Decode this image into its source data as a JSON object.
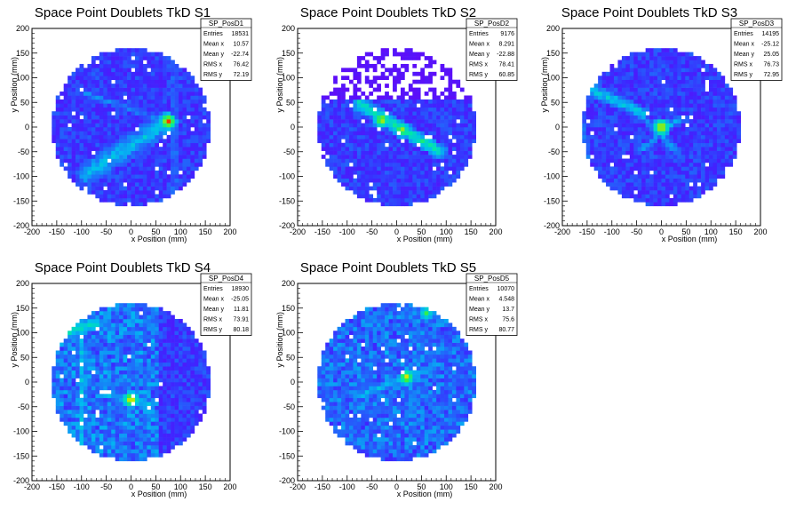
{
  "chart_data": [
    {
      "type": "heatmap",
      "title": "Space Point Doublets TkD S1",
      "xlabel": "x Position (mm)",
      "ylabel": "y Position (mm)",
      "xlim": [
        -200,
        200
      ],
      "ylim": [
        -200,
        200
      ],
      "xticks": [
        -200,
        -150,
        -100,
        -50,
        0,
        50,
        100,
        150,
        200
      ],
      "yticks": [
        -200,
        -150,
        -100,
        -50,
        0,
        50,
        100,
        150,
        200
      ],
      "stats": {
        "name": "SP_PosD1",
        "rows": [
          {
            "label": "Entries",
            "value": "18531"
          },
          {
            "label": "Mean x",
            "value": "10.57"
          },
          {
            "label": "Mean y",
            "value": "-22.74"
          },
          {
            "label": "RMS x",
            "value": "76.42"
          },
          {
            "label": "RMS y",
            "value": "72.19"
          }
        ]
      },
      "disk": {
        "center": [
          0,
          0
        ],
        "radius_mm": 160
      },
      "features": [
        {
          "kind": "band",
          "from": [
            -90,
            -95
          ],
          "to": [
            75,
            10
          ],
          "width_mm": 24,
          "level": 0.42
        },
        {
          "kind": "band",
          "from": [
            -95,
            70
          ],
          "to": [
            75,
            10
          ],
          "width_mm": 9,
          "level": 0.3
        },
        {
          "kind": "band",
          "from": [
            88,
            150
          ],
          "to": [
            88,
            -150
          ],
          "width_mm": 8,
          "level": 0.3
        },
        {
          "kind": "hotspot",
          "at": [
            75,
            12
          ],
          "level": 1.0
        }
      ]
    },
    {
      "type": "heatmap",
      "title": "Space Point Doublets TkD S2",
      "xlabel": "x Position (mm)",
      "ylabel": "y Position (mm)",
      "xlim": [
        -200,
        200
      ],
      "ylim": [
        -200,
        200
      ],
      "xticks": [
        -200,
        -150,
        -100,
        -50,
        0,
        50,
        100,
        150,
        200
      ],
      "yticks": [
        -200,
        -150,
        -100,
        -50,
        0,
        50,
        100,
        150,
        200
      ],
      "stats": {
        "name": "SP_PosD2",
        "rows": [
          {
            "label": "Entries",
            "value": "9176"
          },
          {
            "label": "Mean x",
            "value": "8.291"
          },
          {
            "label": "Mean y",
            "value": "-22.88"
          },
          {
            "label": "RMS x",
            "value": "78.41"
          },
          {
            "label": "RMS y",
            "value": "60.85"
          }
        ]
      },
      "disk": {
        "center": [
          0,
          0
        ],
        "radius_mm": 160
      },
      "features": [
        {
          "kind": "band",
          "from": [
            -75,
            48
          ],
          "to": [
            85,
            -48
          ],
          "width_mm": 16,
          "level": 0.55
        },
        {
          "kind": "hotspot",
          "at": [
            -30,
            15
          ],
          "level": 0.9
        },
        {
          "kind": "hotspot",
          "at": [
            10,
            -5
          ],
          "level": 0.85
        },
        {
          "kind": "sparse-region",
          "y_above_mm": 55,
          "level": 0.05
        }
      ]
    },
    {
      "type": "heatmap",
      "title": "Space Point Doublets TkD S3",
      "xlabel": "x Position (mm)",
      "ylabel": "y Position (mm)",
      "xlim": [
        -200,
        200
      ],
      "ylim": [
        -200,
        200
      ],
      "xticks": [
        -200,
        -150,
        -100,
        -50,
        0,
        50,
        100,
        150,
        200
      ],
      "yticks": [
        -200,
        -150,
        -100,
        -50,
        0,
        50,
        100,
        150,
        200
      ],
      "stats": {
        "name": "SP_PosD3",
        "rows": [
          {
            "label": "Entries",
            "value": "14195"
          },
          {
            "label": "Mean x",
            "value": "-25.12"
          },
          {
            "label": "Mean y",
            "value": "25.05"
          },
          {
            "label": "RMS x",
            "value": "76.73"
          },
          {
            "label": "RMS y",
            "value": "72.95"
          }
        ]
      },
      "disk": {
        "center": [
          0,
          0
        ],
        "radius_mm": 160
      },
      "features": [
        {
          "kind": "band",
          "from": [
            -150,
            80
          ],
          "to": [
            -40,
            30
          ],
          "width_mm": 14,
          "level": 0.45
        },
        {
          "kind": "band",
          "from": [
            -45,
            30
          ],
          "to": [
            40,
            -60
          ],
          "width_mm": 10,
          "level": 0.35
        },
        {
          "kind": "band",
          "from": [
            -40,
            -45
          ],
          "to": [
            40,
            20
          ],
          "width_mm": 7,
          "level": 0.4
        },
        {
          "kind": "band",
          "from": [
            -160,
            20
          ],
          "to": [
            -150,
            -70
          ],
          "width_mm": 10,
          "level": 0.3
        },
        {
          "kind": "hotspot",
          "at": [
            0,
            0
          ],
          "level": 0.95
        }
      ]
    },
    {
      "type": "heatmap",
      "title": "Space Point Doublets TkD S4",
      "xlabel": "x Position (mm)",
      "ylabel": "y Position (mm)",
      "xlim": [
        -200,
        200
      ],
      "ylim": [
        -200,
        200
      ],
      "xticks": [
        -200,
        -150,
        -100,
        -50,
        0,
        50,
        100,
        150,
        200
      ],
      "yticks": [
        -200,
        -150,
        -100,
        -50,
        0,
        50,
        100,
        150,
        200
      ],
      "stats": {
        "name": "SP_PosD4",
        "rows": [
          {
            "label": "Entries",
            "value": "18930"
          },
          {
            "label": "Mean x",
            "value": "-25.05"
          },
          {
            "label": "Mean y",
            "value": "11.81"
          },
          {
            "label": "RMS x",
            "value": "73.91"
          },
          {
            "label": "RMS y",
            "value": "80.18"
          }
        ]
      },
      "disk": {
        "center": [
          0,
          0
        ],
        "radius_mm": 160
      },
      "features": [
        {
          "kind": "region",
          "x_below_mm": 60,
          "level": 0.3
        },
        {
          "kind": "band",
          "from": [
            -100,
            150
          ],
          "to": [
            -100,
            -130
          ],
          "width_mm": 10,
          "level": 0.4
        },
        {
          "kind": "band",
          "from": [
            -130,
            100
          ],
          "to": [
            -70,
            120
          ],
          "width_mm": 14,
          "level": 0.55
        },
        {
          "kind": "band",
          "from": [
            -60,
            -25
          ],
          "to": [
            40,
            -45
          ],
          "width_mm": 8,
          "level": 0.4
        },
        {
          "kind": "hotspot",
          "at": [
            0,
            -35
          ],
          "level": 0.95
        }
      ]
    },
    {
      "type": "heatmap",
      "title": "Space Point Doublets TkD S5",
      "xlabel": "x Position (mm)",
      "ylabel": "y Position (mm)",
      "xlim": [
        -200,
        200
      ],
      "ylim": [
        -200,
        200
      ],
      "xticks": [
        -200,
        -150,
        -100,
        -50,
        0,
        50,
        100,
        150,
        200
      ],
      "yticks": [
        -200,
        -150,
        -100,
        -50,
        0,
        50,
        100,
        150,
        200
      ],
      "stats": {
        "name": "SP_PosD5",
        "rows": [
          {
            "label": "Entries",
            "value": "10070"
          },
          {
            "label": "Mean x",
            "value": "4.548"
          },
          {
            "label": "Mean y",
            "value": "13.7"
          },
          {
            "label": "RMS x",
            "value": "75.6"
          },
          {
            "label": "RMS y",
            "value": "80.77"
          }
        ]
      },
      "disk": {
        "center": [
          0,
          0
        ],
        "radius_mm": 160
      },
      "features": [
        {
          "kind": "region",
          "all": true,
          "level": 0.28
        },
        {
          "kind": "band",
          "from": [
            -80,
            -30
          ],
          "to": [
            70,
            30
          ],
          "width_mm": 10,
          "level": 0.4
        },
        {
          "kind": "band",
          "from": [
            -20,
            60
          ],
          "to": [
            60,
            0
          ],
          "width_mm": 8,
          "level": 0.35
        },
        {
          "kind": "hotspot",
          "at": [
            20,
            10
          ],
          "level": 0.9
        },
        {
          "kind": "hotspot",
          "at": [
            60,
            140
          ],
          "level": 0.7
        }
      ]
    }
  ]
}
